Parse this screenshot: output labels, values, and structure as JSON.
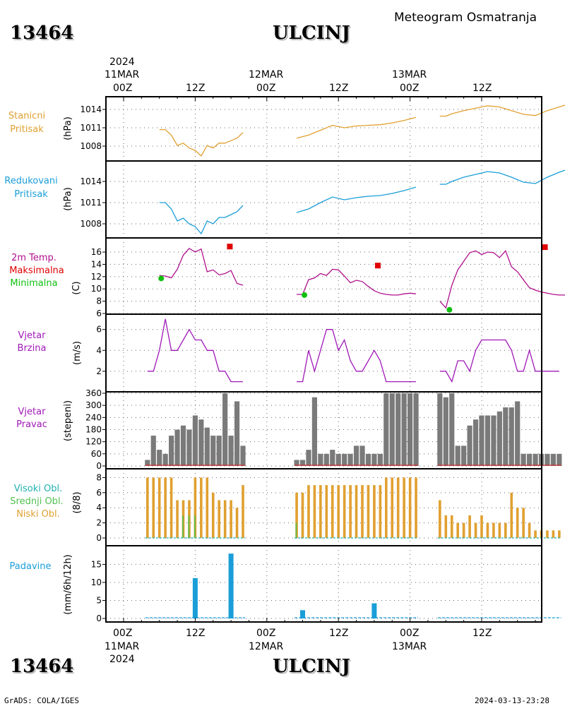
{
  "header": {
    "station_id": "13464",
    "station_name": "ULCINJ",
    "product_title": "Meteogram Osmatranja"
  },
  "footer": {
    "station_id": "13464",
    "station_name": "ULCINJ",
    "credit": "GrADS: COLA/IGES",
    "generated": "2024-03-13-23:28"
  },
  "time_axis": {
    "year": "2024",
    "day_labels": [
      "11MAR",
      "12MAR",
      "13MAR"
    ],
    "hour_labels": [
      "00Z",
      "12Z",
      "00Z",
      "12Z",
      "00Z",
      "12Z"
    ]
  },
  "colors": {
    "station_pressure": "#e0a030",
    "reduced_pressure": "#1a9ed8",
    "temperature": "#b0108c",
    "max_temp": "#e00000",
    "min_temp": "#10c010",
    "wind": "#a018b8",
    "direction_bar": "#7a7a7a",
    "high_cloud": "#20b0b0",
    "mid_cloud": "#50c050",
    "low_cloud": "#e0a030",
    "precip": "#1a9ed8"
  },
  "panels": {
    "station_pressure": {
      "labels": [
        "Stanicni",
        "Pritisak"
      ],
      "unit": "(hPa)",
      "ticks": [
        "1014",
        "1011",
        "1008"
      ]
    },
    "reduced_pressure": {
      "labels": [
        "Redukovani",
        "Pritisak"
      ],
      "unit": "(hPa)",
      "ticks": [
        "1014",
        "1011",
        "1008"
      ]
    },
    "temperature": {
      "labels": [
        "2m Temp.",
        "Maksimalna",
        "Minimalna"
      ],
      "unit": "(C)",
      "ticks": [
        "16",
        "14",
        "12",
        "10",
        "8",
        "6"
      ]
    },
    "wind_speed": {
      "labels": [
        "Vjetar",
        "Brzina"
      ],
      "unit": "(m/s)",
      "ticks": [
        "6",
        "4",
        "2"
      ]
    },
    "wind_direction": {
      "labels": [
        "Vjetar",
        "Pravac"
      ],
      "unit": "(stepeni)",
      "ticks": [
        "360",
        "300",
        "240",
        "180",
        "120",
        "60",
        "0"
      ]
    },
    "clouds": {
      "labels": [
        "Visoki Obl.",
        "Srednji Obl.",
        "Niski Obl."
      ],
      "unit": "(8/8)",
      "ticks": [
        "8",
        "6",
        "4",
        "2",
        "0"
      ]
    },
    "precipitation": {
      "labels": [
        "Padavine"
      ],
      "unit": "(mm/6h/12h)",
      "ticks": [
        "15",
        "10",
        "5",
        "0"
      ]
    }
  },
  "chart_data": [
    {
      "type": "line",
      "name": "station_pressure",
      "x_unit": "hours since 2024-03-11 00Z",
      "ylim": [
        1006.5,
        1015.5
      ],
      "segments": [
        {
          "x": [
            6,
            7,
            8,
            9,
            10,
            11,
            12,
            13,
            14,
            15,
            16,
            17,
            18,
            19,
            20
          ],
          "y": [
            1010.7,
            1010.7,
            1009.8,
            1008.1,
            1008.5,
            1007.7,
            1007.3,
            1006.4,
            1008.1,
            1007.7,
            1008.5,
            1008.5,
            1008.9,
            1009.3,
            1010.2
          ]
        },
        {
          "x": [
            29,
            31,
            33,
            35,
            37,
            39,
            41,
            43,
            45,
            47,
            49
          ],
          "y": [
            1009.3,
            1009.8,
            1010.6,
            1011.4,
            1011.0,
            1011.3,
            1011.4,
            1011.5,
            1011.8,
            1012.2,
            1012.7
          ]
        },
        {
          "x": [
            53,
            54,
            55,
            57,
            59,
            61,
            63,
            65,
            67,
            69,
            71,
            73,
            75
          ],
          "y": [
            1012.9,
            1012.9,
            1013.3,
            1013.8,
            1014.2,
            1014.6,
            1014.4,
            1013.8,
            1013.2,
            1013.0,
            1013.8,
            1014.4,
            1015.0
          ]
        }
      ]
    },
    {
      "type": "line",
      "name": "reduced_pressure",
      "x_unit": "hours since 2024-03-11 00Z",
      "ylim": [
        1006.5,
        1016.5
      ],
      "segments": [
        {
          "x": [
            6,
            7,
            8,
            9,
            10,
            11,
            12,
            13,
            14,
            15,
            16,
            17,
            18,
            19,
            20
          ],
          "y": [
            1011.0,
            1011.0,
            1010.1,
            1008.4,
            1008.8,
            1008.0,
            1007.6,
            1006.6,
            1008.4,
            1008.0,
            1008.9,
            1008.9,
            1009.3,
            1009.7,
            1010.6
          ]
        },
        {
          "x": [
            29,
            31,
            33,
            35,
            37,
            39,
            41,
            43,
            45,
            47,
            49
          ],
          "y": [
            1009.6,
            1010.1,
            1011.0,
            1011.8,
            1011.4,
            1011.7,
            1011.9,
            1012.0,
            1012.3,
            1012.7,
            1013.2
          ]
        },
        {
          "x": [
            53,
            54,
            55,
            57,
            59,
            61,
            63,
            65,
            67,
            69,
            71,
            73,
            75
          ],
          "y": [
            1013.6,
            1013.6,
            1014.0,
            1014.6,
            1015.0,
            1015.4,
            1015.2,
            1014.6,
            1013.9,
            1013.7,
            1014.6,
            1015.3,
            1015.9
          ]
        }
      ]
    },
    {
      "type": "line",
      "name": "temperature",
      "x_unit": "hours since 2024-03-11 00Z",
      "ylim": [
        6,
        17.5
      ],
      "segments": [
        {
          "x": [
            6,
            7,
            8,
            9,
            10,
            11,
            12,
            13,
            14,
            15,
            16,
            17,
            18,
            19,
            20
          ],
          "y": [
            12.2,
            12.1,
            11.8,
            13.2,
            15.5,
            16.6,
            16.0,
            16.5,
            12.8,
            13.1,
            12.3,
            12.5,
            13.0,
            10.9,
            10.6
          ]
        },
        {
          "x": [
            29,
            30,
            31,
            32,
            33,
            34,
            35,
            36,
            37,
            38,
            39,
            40,
            41,
            42,
            43,
            44,
            45,
            46,
            47,
            48,
            49
          ],
          "y": [
            9.1,
            9.1,
            11.5,
            11.8,
            12.5,
            12.2,
            13.2,
            13.1,
            12.1,
            11.0,
            11.4,
            11.2,
            10.4,
            9.7,
            9.3,
            9.1,
            9.0,
            9.0,
            9.2,
            9.3,
            9.2
          ]
        },
        {
          "x": [
            53,
            54,
            55,
            56,
            57,
            58,
            59,
            60,
            61,
            62,
            63,
            64,
            65,
            66,
            67,
            68,
            69,
            70,
            71,
            72,
            73,
            74,
            75
          ],
          "y": [
            8.0,
            6.9,
            10.6,
            13.1,
            14.5,
            15.9,
            16.2,
            15.6,
            16.0,
            15.9,
            15.1,
            16.2,
            13.6,
            12.8,
            11.5,
            10.2,
            9.8,
            9.5,
            9.3,
            9.1,
            9.0,
            9.0,
            9.0
          ]
        }
      ],
      "max_markers": [
        {
          "x": 17.8,
          "y": 16.9
        },
        {
          "x": 42.6,
          "y": 13.8
        },
        {
          "x": 70.6,
          "y": 16.8
        }
      ],
      "min_markers": [
        {
          "x": 6.3,
          "y": 11.7
        },
        {
          "x": 30.3,
          "y": 9.0
        },
        {
          "x": 54.6,
          "y": 6.6
        }
      ]
    },
    {
      "type": "line",
      "name": "wind_speed",
      "x_unit": "hours since 2024-03-11 00Z",
      "ylim": [
        0.5,
        7.4
      ],
      "segments": [
        {
          "x": [
            4,
            5,
            6,
            7,
            8,
            9,
            10,
            11,
            12,
            13,
            14,
            15,
            16,
            17,
            18,
            19,
            20
          ],
          "y": [
            2,
            2,
            4,
            7,
            4,
            4,
            5,
            6,
            5,
            5,
            4,
            4,
            2,
            2,
            1,
            1,
            1
          ]
        },
        {
          "x": [
            29,
            30,
            31,
            32,
            33,
            34,
            35,
            36,
            37,
            38,
            39,
            40,
            41,
            42,
            43,
            44,
            45,
            46,
            47,
            48,
            49
          ],
          "y": [
            1,
            1,
            4,
            2,
            4,
            6,
            6,
            4,
            5,
            3,
            2,
            2,
            3,
            4,
            3,
            1,
            1,
            1,
            1,
            1,
            1
          ]
        },
        {
          "x": [
            53,
            54,
            55,
            56,
            57,
            58,
            59,
            60,
            61,
            62,
            63,
            64,
            65,
            66,
            67,
            68,
            69,
            70,
            71,
            72,
            73
          ],
          "y": [
            2,
            2,
            1,
            3,
            3,
            2,
            4,
            5,
            5,
            5,
            5,
            5,
            4,
            2,
            2,
            4,
            2,
            2,
            2,
            2,
            2
          ]
        }
      ]
    },
    {
      "type": "bar",
      "name": "wind_direction",
      "x_unit": "hours since 2024-03-11 00Z",
      "ylim": [
        0,
        360
      ],
      "x": [
        4,
        5,
        6,
        7,
        8,
        9,
        10,
        11,
        12,
        13,
        14,
        15,
        16,
        17,
        18,
        19,
        20,
        29,
        30,
        31,
        32,
        33,
        34,
        35,
        36,
        37,
        38,
        39,
        40,
        41,
        42,
        43,
        44,
        45,
        46,
        47,
        48,
        49,
        53,
        54,
        55,
        56,
        57,
        58,
        59,
        60,
        61,
        62,
        63,
        64,
        65,
        66,
        67,
        68,
        69,
        70,
        71,
        72,
        73
      ],
      "values": [
        30,
        150,
        80,
        60,
        150,
        180,
        200,
        180,
        250,
        230,
        190,
        150,
        150,
        360,
        150,
        320,
        100,
        30,
        30,
        80,
        340,
        60,
        60,
        80,
        60,
        60,
        60,
        100,
        100,
        60,
        60,
        60,
        360,
        360,
        360,
        360,
        360,
        360,
        360,
        340,
        360,
        100,
        100,
        200,
        230,
        250,
        250,
        250,
        270,
        290,
        290,
        320,
        60,
        60,
        60,
        60,
        60,
        60,
        60
      ]
    },
    {
      "type": "bar",
      "name": "clouds",
      "x_unit": "hours since 2024-03-11 00Z",
      "ylim": [
        0,
        8.6
      ],
      "series": [
        {
          "name": "Niski Obl.",
          "x": [
            4,
            5,
            6,
            7,
            8,
            9,
            10,
            11,
            12,
            13,
            14,
            15,
            16,
            17,
            18,
            19,
            20,
            29,
            30,
            31,
            32,
            33,
            34,
            35,
            36,
            37,
            38,
            39,
            40,
            41,
            42,
            43,
            44,
            45,
            46,
            47,
            48,
            49,
            53,
            54,
            55,
            56,
            57,
            58,
            59,
            60,
            61,
            62,
            63,
            64,
            65,
            66,
            67,
            68,
            69,
            70,
            71,
            72,
            73
          ],
          "values": [
            8,
            8,
            8,
            8,
            8,
            5,
            5,
            5,
            8,
            8,
            8,
            6,
            5,
            5,
            5,
            4,
            7,
            6,
            6,
            7,
            7,
            7,
            7,
            7,
            7,
            7,
            7,
            7,
            7,
            7,
            7,
            7,
            8,
            8,
            8,
            8,
            8,
            8,
            5,
            3,
            3,
            2,
            2,
            3,
            2,
            3,
            2,
            2,
            2,
            2,
            6,
            4,
            4,
            2,
            1,
            1,
            1,
            1,
            1
          ]
        },
        {
          "name": "Srednji Obl.",
          "x": [
            10,
            11,
            12,
            29
          ],
          "values": [
            3,
            3,
            3,
            2
          ]
        }
      ]
    },
    {
      "type": "bar",
      "name": "precipitation",
      "x_unit": "hours since 2024-03-11 00Z",
      "ylim": [
        0,
        19
      ],
      "x": [
        12,
        18,
        30,
        42
      ],
      "values": [
        11.2,
        18.0,
        2.3,
        4.2
      ]
    }
  ]
}
